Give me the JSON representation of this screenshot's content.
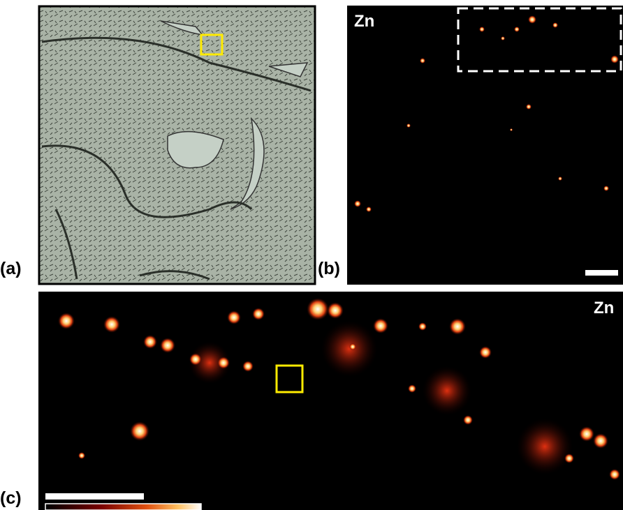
{
  "panels": [
    {
      "label": "(a)"
    },
    {
      "label": "(b)",
      "element": "Zn"
    },
    {
      "label": "(c)",
      "element": "Zn"
    }
  ]
}
